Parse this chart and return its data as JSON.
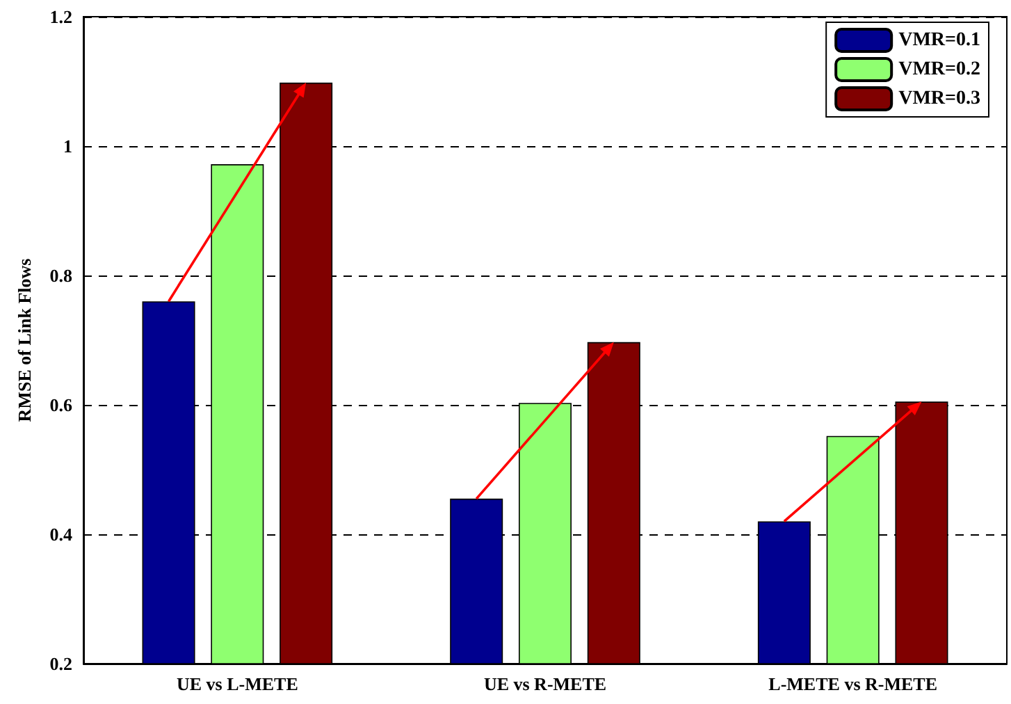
{
  "chart_data": {
    "type": "bar",
    "ylabel": "RMSE of Link Flows",
    "categories": [
      "UE vs L-METE",
      "UE vs R-METE",
      "L-METE vs R-METE"
    ],
    "series": [
      {
        "name": "VMR=0.1",
        "color": "#00008f",
        "values": [
          0.76,
          0.455,
          0.42
        ]
      },
      {
        "name": "VMR=0.2",
        "color": "#8fff70",
        "values": [
          0.972,
          0.603,
          0.552
        ]
      },
      {
        "name": "VMR=0.3",
        "color": "#800000",
        "values": [
          1.098,
          0.697,
          0.605
        ]
      }
    ],
    "ylim": [
      0.2,
      1.2
    ],
    "yticks": [
      0.2,
      0.4,
      0.6,
      0.8,
      1,
      1.2
    ],
    "grid": "y",
    "legend": "top right"
  }
}
